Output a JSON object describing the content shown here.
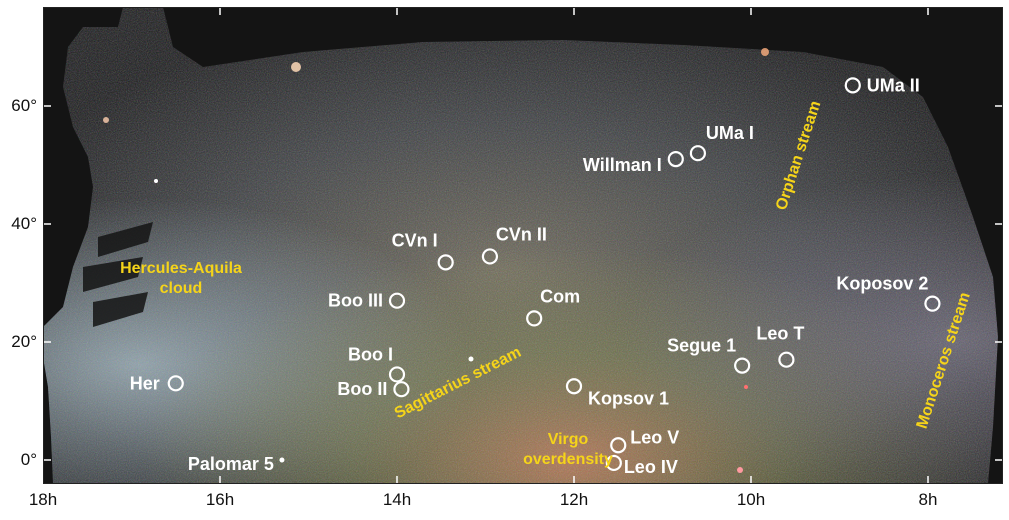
{
  "axes": {
    "x_ticks": [
      "18h",
      "16h",
      "14h",
      "12h",
      "10h",
      "8h"
    ],
    "y_ticks": [
      "60°",
      "40°",
      "20°",
      "0°"
    ]
  },
  "objects": [
    {
      "name": "UMa II",
      "ra_h": 8.85,
      "dec": 63.5
    },
    {
      "name": "UMa I",
      "ra_h": 10.6,
      "dec": 52.0
    },
    {
      "name": "Willman I",
      "ra_h": 10.85,
      "dec": 51.0
    },
    {
      "name": "CVn II",
      "ra_h": 12.95,
      "dec": 34.5
    },
    {
      "name": "CVn I",
      "ra_h": 13.45,
      "dec": 33.5
    },
    {
      "name": "Koposov 2",
      "ra_h": 7.95,
      "dec": 26.5
    },
    {
      "name": "Boo III",
      "ra_h": 14.0,
      "dec": 27.0
    },
    {
      "name": "Com",
      "ra_h": 12.45,
      "dec": 24.0
    },
    {
      "name": "Segue 1",
      "ra_h": 10.1,
      "dec": 16.0
    },
    {
      "name": "Leo T",
      "ra_h": 9.6,
      "dec": 17.0
    },
    {
      "name": "Boo I",
      "ra_h": 14.0,
      "dec": 14.5
    },
    {
      "name": "Boo II",
      "ra_h": 13.95,
      "dec": 12.0
    },
    {
      "name": "Her",
      "ra_h": 16.5,
      "dec": 13.0
    },
    {
      "name": "Kopsov 1",
      "ra_h": 12.0,
      "dec": 12.5
    },
    {
      "name": "Leo V",
      "ra_h": 11.5,
      "dec": 2.5
    },
    {
      "name": "Leo IV",
      "ra_h": 11.55,
      "dec": -0.5
    },
    {
      "name": "Palomar 5",
      "ra_h": 15.3,
      "dec": 0.0
    }
  ],
  "streams": [
    {
      "name": "Hercules-Aquila cloud",
      "lines": [
        "Hercules-Aquila",
        "cloud"
      ]
    },
    {
      "name": "Sagittarius stream",
      "lines": [
        "Sagittarius stream"
      ]
    },
    {
      "name": "Virgo overdensity",
      "lines": [
        "Virgo",
        "overdensity"
      ]
    },
    {
      "name": "Orphan stream",
      "lines": [
        "Orphan stream"
      ]
    },
    {
      "name": "Monoceros stream",
      "lines": [
        "Monoceros stream"
      ]
    }
  ],
  "colors": {
    "label_white": "#ffffff",
    "label_yellow": "#f5d41a",
    "sky_dark": "#141414"
  }
}
